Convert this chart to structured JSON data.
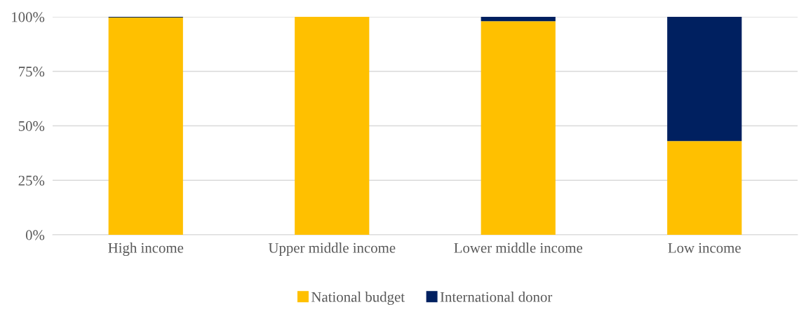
{
  "chart_data": {
    "type": "bar",
    "stacked": true,
    "categories": [
      "High income",
      "Upper middle income",
      "Lower middle income",
      "Low income"
    ],
    "series": [
      {
        "name": "National budget",
        "color": "#ffc000",
        "values": [
          99.7,
          100,
          98,
          43
        ]
      },
      {
        "name": "International donor",
        "color": "#002060",
        "values": [
          0.3,
          0,
          2,
          57
        ]
      }
    ],
    "ylim": [
      0,
      100
    ],
    "yticks": [
      {
        "value": 0,
        "label": "0%"
      },
      {
        "value": 25,
        "label": "25%"
      },
      {
        "value": 50,
        "label": "50%"
      },
      {
        "value": 75,
        "label": "75%"
      },
      {
        "value": 100,
        "label": "100%"
      }
    ],
    "grid": "y",
    "legend": "bottom"
  }
}
